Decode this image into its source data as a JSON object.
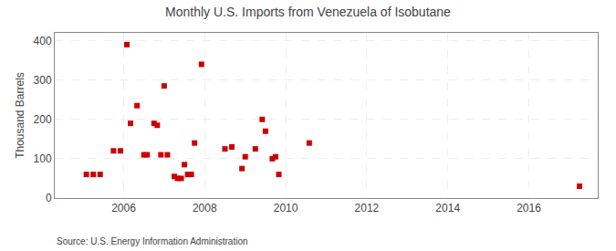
{
  "chart_data": {
    "type": "scatter",
    "title": "Monthly U.S. Imports from Venezuela of Isobutane",
    "ylabel": "Thousand Barrels",
    "annotations": [
      "Source: U.S. Energy Information Administration"
    ],
    "x": [
      2005.08,
      2005.25,
      2005.42,
      2005.75,
      2005.92,
      2006.08,
      2006.17,
      2006.33,
      2006.5,
      2006.58,
      2006.75,
      2006.83,
      2006.92,
      2007.0,
      2007.08,
      2007.25,
      2007.33,
      2007.42,
      2007.5,
      2007.58,
      2007.67,
      2007.75,
      2007.92,
      2008.5,
      2008.67,
      2008.92,
      2009.0,
      2009.25,
      2009.42,
      2009.5,
      2009.67,
      2009.75,
      2009.83,
      2010.58,
      2017.25
    ],
    "values": [
      60,
      60,
      60,
      120,
      120,
      390,
      190,
      235,
      110,
      110,
      190,
      185,
      110,
      285,
      110,
      55,
      50,
      50,
      85,
      60,
      60,
      140,
      340,
      125,
      130,
      75,
      105,
      125,
      200,
      170,
      100,
      105,
      60,
      140,
      30
    ],
    "color": "#cc0000",
    "marker": "square",
    "xlim": [
      2004.3,
      2017.7
    ],
    "xticks": [
      2006,
      2008,
      2010,
      2012,
      2014,
      2016
    ],
    "ylim": [
      0,
      420
    ],
    "yticks": [
      0,
      100,
      200,
      300,
      400
    ],
    "grid": true
  }
}
